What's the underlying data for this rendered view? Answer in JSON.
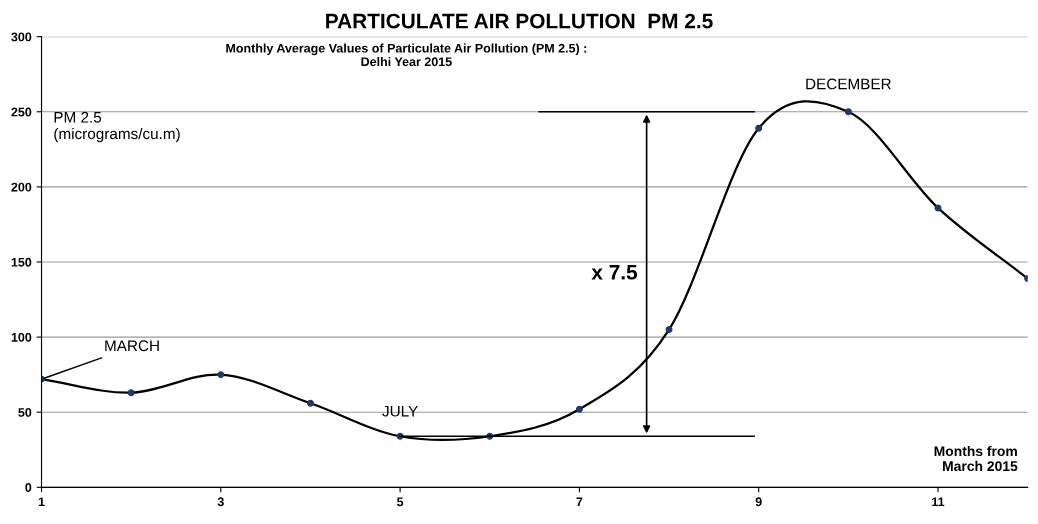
{
  "chart_data": {
    "type": "line",
    "title": "PARTICULATE AIR POLLUTION  PM 2.5",
    "subtitle": "Monthly Average Values of Particulate Air Pollution (PM 2.5) :\nDelhi Year 2015",
    "ylabel": "PM 2.5\n(micrograms/cu.m)",
    "xlabel": "Months from\nMarch 2015",
    "x": [
      1,
      2,
      3,
      4,
      5,
      6,
      7,
      8,
      9,
      10,
      11,
      12
    ],
    "series": [
      {
        "color": "#000000",
        "values": [
          72,
          63,
          75,
          56,
          34,
          34,
          52,
          105,
          239,
          250,
          186,
          139
        ]
      }
    ],
    "marker": "circle",
    "annotations": [
      {
        "text": "MARCH",
        "x": 1,
        "y": 72
      },
      {
        "text": "JULY",
        "x": 5,
        "y": 34
      },
      {
        "text": "DECEMBER",
        "x": 10,
        "y": 250
      },
      "x 7.5"
    ],
    "xlim": [
      1,
      12
    ],
    "xticks": [
      1,
      3,
      5,
      7,
      9,
      11
    ],
    "ylim": [
      0,
      300
    ],
    "yticks": [
      0,
      50,
      100,
      150,
      200,
      250,
      300
    ],
    "grid": "y"
  }
}
